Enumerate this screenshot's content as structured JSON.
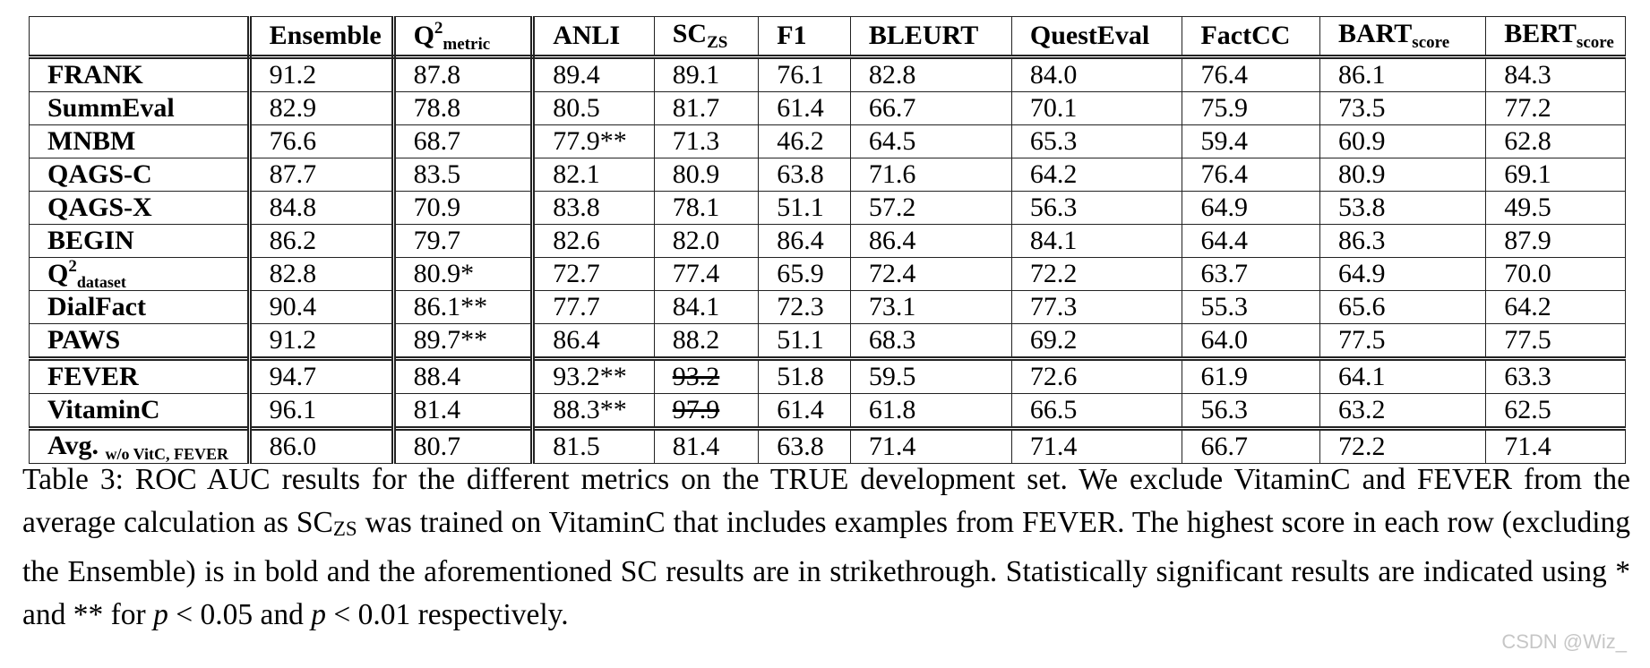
{
  "table": {
    "headers": [
      {
        "main": "",
        "sub": "",
        "sup": ""
      },
      {
        "main": "Ensemble",
        "sub": "",
        "sup": ""
      },
      {
        "main": "Q",
        "sup": "2",
        "sub": "metric"
      },
      {
        "main": "ANLI",
        "sub": "",
        "sup": ""
      },
      {
        "main": "SC",
        "sub": "ZS",
        "sup": ""
      },
      {
        "main": "F1",
        "sub": "",
        "sup": ""
      },
      {
        "main": "BLEURT",
        "sub": "",
        "sup": ""
      },
      {
        "main": "QuestEval",
        "sub": "",
        "sup": ""
      },
      {
        "main": "FactCC",
        "sub": "",
        "sup": ""
      },
      {
        "main": "BART",
        "sub": "score",
        "sup": ""
      },
      {
        "main": "BERT",
        "sub": "score",
        "sup": ""
      }
    ],
    "rows": [
      {
        "name": "FRANK",
        "sup": "",
        "sub": "",
        "group_start": false,
        "cells": [
          {
            "v": "91.2"
          },
          {
            "v": "87.8"
          },
          {
            "v": "89.4",
            "bold": true
          },
          {
            "v": "89.1"
          },
          {
            "v": "76.1"
          },
          {
            "v": "82.8"
          },
          {
            "v": "84.0"
          },
          {
            "v": "76.4"
          },
          {
            "v": "86.1"
          },
          {
            "v": "84.3"
          }
        ]
      },
      {
        "name": "SummEval",
        "sup": "",
        "sub": "",
        "group_start": false,
        "cells": [
          {
            "v": "82.9"
          },
          {
            "v": "78.8"
          },
          {
            "v": "80.5"
          },
          {
            "v": "81.7",
            "bold": true
          },
          {
            "v": "61.4"
          },
          {
            "v": "66.7"
          },
          {
            "v": "70.1"
          },
          {
            "v": "75.9"
          },
          {
            "v": "73.5"
          },
          {
            "v": "77.2"
          }
        ]
      },
      {
        "name": "MNBM",
        "sup": "",
        "sub": "",
        "group_start": false,
        "cells": [
          {
            "v": "76.6"
          },
          {
            "v": "68.7"
          },
          {
            "v": "77.9**",
            "bold": true
          },
          {
            "v": "71.3"
          },
          {
            "v": "46.2"
          },
          {
            "v": "64.5"
          },
          {
            "v": "65.3"
          },
          {
            "v": "59.4"
          },
          {
            "v": "60.9"
          },
          {
            "v": "62.8"
          }
        ]
      },
      {
        "name": "QAGS-C",
        "sup": "",
        "sub": "",
        "group_start": false,
        "cells": [
          {
            "v": "87.7"
          },
          {
            "v": "83.5",
            "bold": true
          },
          {
            "v": "82.1"
          },
          {
            "v": "80.9"
          },
          {
            "v": "63.8"
          },
          {
            "v": "71.6"
          },
          {
            "v": "64.2"
          },
          {
            "v": "76.4"
          },
          {
            "v": "80.9"
          },
          {
            "v": "69.1"
          }
        ]
      },
      {
        "name": "QAGS-X",
        "sup": "",
        "sub": "",
        "group_start": false,
        "cells": [
          {
            "v": "84.8"
          },
          {
            "v": "70.9"
          },
          {
            "v": "83.8",
            "bold": true
          },
          {
            "v": "78.1"
          },
          {
            "v": "51.1"
          },
          {
            "v": "57.2"
          },
          {
            "v": "56.3"
          },
          {
            "v": "64.9"
          },
          {
            "v": "53.8"
          },
          {
            "v": "49.5"
          }
        ]
      },
      {
        "name": "BEGIN",
        "sup": "",
        "sub": "",
        "group_start": false,
        "cells": [
          {
            "v": "86.2"
          },
          {
            "v": "79.7"
          },
          {
            "v": "82.6"
          },
          {
            "v": "82.0"
          },
          {
            "v": "86.4"
          },
          {
            "v": "86.4"
          },
          {
            "v": "84.1"
          },
          {
            "v": "64.4"
          },
          {
            "v": "86.3"
          },
          {
            "v": "87.9",
            "bold": true
          }
        ]
      },
      {
        "name": "Q",
        "sup": "2",
        "sub": "dataset",
        "group_start": false,
        "cells": [
          {
            "v": "82.8"
          },
          {
            "v": "80.9*",
            "bold": true
          },
          {
            "v": "72.7"
          },
          {
            "v": "77.4"
          },
          {
            "v": "65.9"
          },
          {
            "v": "72.4"
          },
          {
            "v": "72.2"
          },
          {
            "v": "63.7"
          },
          {
            "v": "64.9"
          },
          {
            "v": "70.0"
          }
        ]
      },
      {
        "name": "DialFact",
        "sup": "",
        "sub": "",
        "group_start": false,
        "cells": [
          {
            "v": "90.4"
          },
          {
            "v": "86.1**",
            "bold": true
          },
          {
            "v": "77.7"
          },
          {
            "v": "84.1"
          },
          {
            "v": "72.3"
          },
          {
            "v": "73.1"
          },
          {
            "v": "77.3"
          },
          {
            "v": "55.3"
          },
          {
            "v": "65.6"
          },
          {
            "v": "64.2"
          }
        ]
      },
      {
        "name": "PAWS",
        "sup": "",
        "sub": "",
        "group_start": false,
        "cells": [
          {
            "v": "91.2"
          },
          {
            "v": "89.7**",
            "bold": true
          },
          {
            "v": "86.4"
          },
          {
            "v": "88.2"
          },
          {
            "v": "51.1"
          },
          {
            "v": "68.3"
          },
          {
            "v": "69.2"
          },
          {
            "v": "64.0"
          },
          {
            "v": "77.5"
          },
          {
            "v": "77.5"
          }
        ]
      },
      {
        "name": "FEVER",
        "sup": "",
        "sub": "",
        "group_start": true,
        "cells": [
          {
            "v": "94.7"
          },
          {
            "v": "88.4"
          },
          {
            "v": "93.2**",
            "bold": true
          },
          {
            "v": "93.2",
            "strike": true
          },
          {
            "v": "51.8"
          },
          {
            "v": "59.5"
          },
          {
            "v": "72.6"
          },
          {
            "v": "61.9"
          },
          {
            "v": "64.1"
          },
          {
            "v": "63.3"
          }
        ]
      },
      {
        "name": "VitaminC",
        "sup": "",
        "sub": "",
        "group_start": false,
        "cells": [
          {
            "v": "96.1"
          },
          {
            "v": "81.4"
          },
          {
            "v": "88.3**",
            "bold": true
          },
          {
            "v": "97.9",
            "strike": true
          },
          {
            "v": "61.4"
          },
          {
            "v": "61.8"
          },
          {
            "v": "66.5"
          },
          {
            "v": "56.3"
          },
          {
            "v": "63.2"
          },
          {
            "v": "62.5"
          }
        ]
      },
      {
        "name": "Avg.",
        "sup": "",
        "sub": "w/o VitC, FEVER",
        "group_start": true,
        "cells": [
          {
            "v": "86.0"
          },
          {
            "v": "80.7"
          },
          {
            "v": "81.5",
            "bold": true
          },
          {
            "v": "81.4"
          },
          {
            "v": "63.8"
          },
          {
            "v": "71.4"
          },
          {
            "v": "71.4"
          },
          {
            "v": "66.7"
          },
          {
            "v": "72.2"
          },
          {
            "v": "71.4"
          }
        ]
      }
    ]
  },
  "caption": {
    "p1": "Table 3: ROC AUC results for the different metrics on the TRUE development set.  We exclude VitaminC and FEVER from the average calculation as SC",
    "p1_sub": "ZS",
    "p2": " was trained on VitaminC that includes examples from FEVER. The highest score in each row (excluding the Ensemble) is in bold and the aforementioned SC results are in strikethrough. Statistically significant results are indicated using * and ** for ",
    "p_var1": "p",
    "p3": " < 0.05 and ",
    "p_var2": "p",
    "p4": " < 0.01 respectively."
  },
  "watermark": "CSDN @Wiz_"
}
